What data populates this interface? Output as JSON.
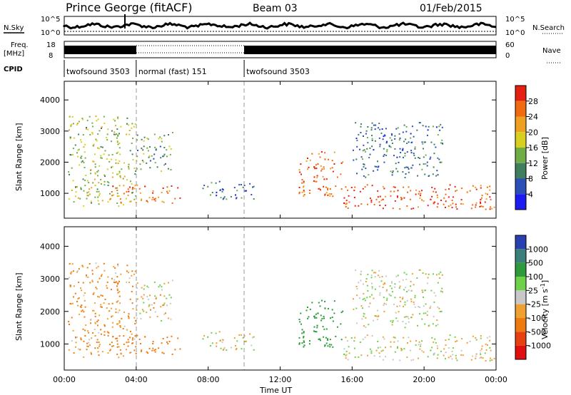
{
  "header": {
    "station": "Prince George (fitACF)",
    "beam": "Beam 03",
    "date": "01/Feb/2015"
  },
  "strip_labels": {
    "nsky": "N.Sky",
    "nsky_hi": "10^5",
    "nsky_lo": "10^0",
    "nsearch": "N.Search",
    "nsearch_hi": "10^5",
    "nsearch_lo": "10^0",
    "freq_line1": "Freq.",
    "freq_line2": "[MHz]",
    "freq_hi": "18",
    "freq_lo": "8",
    "nave": "Nave",
    "nave_hi": "60",
    "nave_lo": "0",
    "cpid": "CPID"
  },
  "cpid_segments": [
    {
      "label": "twofsound 3503",
      "start_h": 0,
      "end_h": 4
    },
    {
      "label": "normal (fast) 151",
      "start_h": 4,
      "end_h": 10
    },
    {
      "label": "twofsound 3503",
      "start_h": 10,
      "end_h": 24
    }
  ],
  "axes": {
    "x_label": "Time UT",
    "x_ticks": [
      "00:00",
      "04:00",
      "08:00",
      "12:00",
      "16:00",
      "20:00",
      "00:00"
    ],
    "x_range_h": [
      0,
      24
    ],
    "y_label": "Slant Range [km]",
    "y_ticks": [
      "1000",
      "2000",
      "3000",
      "4000"
    ],
    "y_range_km": [
      200,
      4600
    ]
  },
  "colorbars": {
    "power": {
      "label": "Power [dB]",
      "ticks": [
        "4",
        "8",
        "12",
        "16",
        "20",
        "24",
        "28"
      ],
      "colors": [
        "#1c1cf0",
        "#2a4fb8",
        "#3f7f5f",
        "#6fae47",
        "#d8d020",
        "#f0a020",
        "#f06a10",
        "#e62010"
      ]
    },
    "velocity": {
      "label": "Velocity [m s",
      "label_sup": "-1",
      "label_close": "]",
      "ticks": [
        "1000",
        "500",
        "100",
        "25",
        "-25",
        "-100",
        "-500",
        "-1000"
      ],
      "colors": [
        "#2a3fb0",
        "#3a7f7a",
        "#2f9a3a",
        "#6fd04a",
        "#c8c8c8",
        "#f0a030",
        "#ef7a10",
        "#e84010",
        "#e01010"
      ]
    }
  },
  "chart_data": {
    "type": "heatmap",
    "title": "Prince George (fitACF)  Beam 03  01/Feb/2015",
    "xlabel": "Time UT",
    "ylabel": "Slant Range [km]",
    "xlim": [
      0,
      24
    ],
    "ylim": [
      200,
      4600
    ],
    "scatter_regions": [
      {
        "t": [
          0.2,
          4.0
        ],
        "r": [
          600,
          3500
        ],
        "power": 16,
        "velocity": -100
      },
      {
        "t": [
          2.5,
          6.5
        ],
        "r": [
          700,
          1300
        ],
        "power": 26,
        "velocity": -300
      },
      {
        "t": [
          4.0,
          6.0
        ],
        "r": [
          1700,
          3000
        ],
        "power": 12,
        "velocity": -25
      },
      {
        "t": [
          7.5,
          10.5
        ],
        "r": [
          800,
          1400
        ],
        "power": 8,
        "velocity": 0
      },
      {
        "t": [
          13.0,
          15.5
        ],
        "r": [
          900,
          2400
        ],
        "power": 26,
        "velocity": 300
      },
      {
        "t": [
          15.5,
          24.0
        ],
        "r": [
          500,
          1300
        ],
        "power": 28,
        "velocity": 0
      },
      {
        "t": [
          16.0,
          21.0
        ],
        "r": [
          1500,
          3300
        ],
        "power": 8,
        "velocity": 0
      }
    ]
  }
}
